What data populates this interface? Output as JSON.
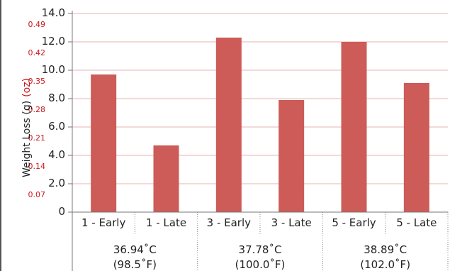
{
  "chart_data": {
    "type": "bar",
    "categories": [
      "1 - Early",
      "1 - Late",
      "3 - Early",
      "3 - Late",
      "5 - Early",
      "5 - Late"
    ],
    "values": [
      9.7,
      4.7,
      12.3,
      7.9,
      12.0,
      9.1
    ],
    "groups": [
      {
        "line1": "36.94˚C",
        "line2": "(98.5˚F)"
      },
      {
        "line1": "37.78˚C",
        "line2": "(100.0˚F)"
      },
      {
        "line1": "38.89˚C",
        "line2": "(102.0˚F)"
      }
    ],
    "ylabel_main": "Weight Loss (g)",
    "ylabel_unit": "(oz)",
    "ylim": [
      0,
      14
    ],
    "y_ticks_g": [
      "0",
      "2.0",
      "4.0",
      "6.0",
      "8.0",
      "10.0",
      "12.0",
      "14.0"
    ],
    "y_ticks_oz": [
      "",
      "0.07",
      "0.14",
      "0.21",
      "0.28",
      "0.35",
      "0.42",
      "0.49"
    ],
    "grid": true,
    "bar_color": "#cd5b57",
    "grid_color": "#e4b4b0",
    "oz_label_color": "#c8181e"
  }
}
